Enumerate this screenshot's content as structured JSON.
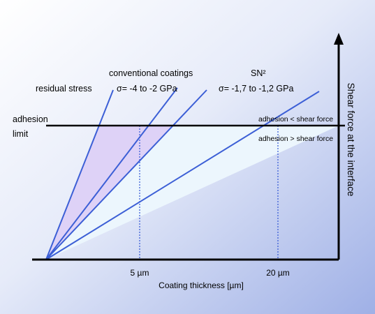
{
  "labels": {
    "residual_stress": "residual stress",
    "conventional_line1": "conventional coatings",
    "conventional_line2": "σ= -4 to -2 GPa",
    "sn2_line1": "SN²",
    "sn2_line2": "σ= -1,7 to -1,2 GPa",
    "adhesion_line1": "adhesion",
    "adhesion_line2": "limit",
    "adhesion_lt_shear": "adhesion < shear force",
    "adhesion_gt_shear": "adhesion > shear force",
    "y_axis": "Shear force at the interface",
    "x_axis": "Coating thickness [µm]",
    "tick_5um": "5 µm",
    "tick_20um": "20 µm"
  },
  "colors": {
    "background_light": "#ffffff",
    "background_dark": "#9fb0e6",
    "stress_line": "#3c5fd6",
    "region_conventional": "#ded2f7",
    "region_sn2": "#ecf6fd",
    "axis": "#000000"
  }
}
